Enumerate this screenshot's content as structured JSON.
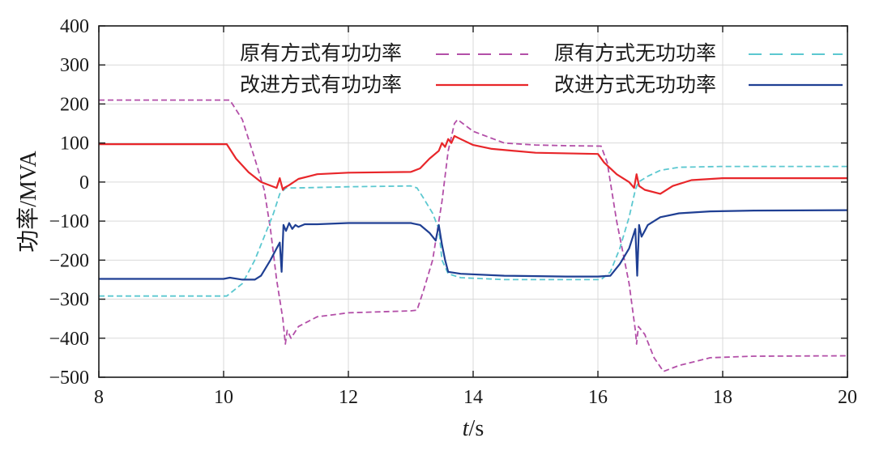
{
  "chart_data": {
    "type": "line",
    "title": "",
    "xlabel_italic": "t",
    "xlabel_unit": "/s",
    "ylabel": "功率/MVA",
    "xlim": [
      8,
      20
    ],
    "ylim": [
      -500,
      400
    ],
    "xticks": [
      8,
      10,
      12,
      14,
      16,
      18,
      20
    ],
    "yticks": [
      400,
      300,
      200,
      100,
      0,
      -100,
      -200,
      -300,
      -400,
      -500
    ],
    "ytick_labels": [
      "400",
      "300",
      "200",
      "100",
      "0",
      "−100",
      "−200",
      "−300",
      "−400",
      "−500"
    ],
    "grid": true,
    "legend_position": "top",
    "series": [
      {
        "name": "原有方式有功功率",
        "color": "#b34fa8",
        "style": "dashed",
        "points": [
          [
            8,
            210
          ],
          [
            10.1,
            210
          ],
          [
            10.3,
            160
          ],
          [
            10.5,
            60
          ],
          [
            10.65,
            -20
          ],
          [
            10.75,
            -120
          ],
          [
            10.85,
            -250
          ],
          [
            10.95,
            -350
          ],
          [
            10.99,
            -415
          ],
          [
            11.02,
            -380
          ],
          [
            11.08,
            -400
          ],
          [
            11.2,
            -370
          ],
          [
            11.5,
            -345
          ],
          [
            12,
            -335
          ],
          [
            13,
            -330
          ],
          [
            13.1,
            -328
          ],
          [
            13.2,
            -280
          ],
          [
            13.35,
            -200
          ],
          [
            13.5,
            -50
          ],
          [
            13.6,
            80
          ],
          [
            13.7,
            150
          ],
          [
            13.75,
            160
          ],
          [
            14,
            130
          ],
          [
            14.5,
            100
          ],
          [
            15,
            95
          ],
          [
            15.5,
            93
          ],
          [
            16.05,
            92
          ],
          [
            16.15,
            50
          ],
          [
            16.3,
            -100
          ],
          [
            16.5,
            -260
          ],
          [
            16.6,
            -380
          ],
          [
            16.62,
            -415
          ],
          [
            16.65,
            -370
          ],
          [
            16.75,
            -390
          ],
          [
            16.9,
            -450
          ],
          [
            17.05,
            -485
          ],
          [
            17.3,
            -470
          ],
          [
            17.8,
            -450
          ],
          [
            18.5,
            -446
          ],
          [
            20,
            -445
          ]
        ]
      },
      {
        "name": "原有方式无功功率",
        "color": "#5cc8d0",
        "style": "dashed",
        "points": [
          [
            8,
            -292
          ],
          [
            10.05,
            -292
          ],
          [
            10.3,
            -260
          ],
          [
            10.5,
            -200
          ],
          [
            10.65,
            -140
          ],
          [
            10.8,
            -80
          ],
          [
            10.9,
            -30
          ],
          [
            11,
            -15
          ],
          [
            11.2,
            -15
          ],
          [
            12,
            -12
          ],
          [
            13,
            -10
          ],
          [
            13.1,
            -15
          ],
          [
            13.2,
            -40
          ],
          [
            13.35,
            -80
          ],
          [
            13.45,
            -120
          ],
          [
            13.5,
            -200
          ],
          [
            13.6,
            -235
          ],
          [
            13.8,
            -245
          ],
          [
            14.5,
            -250
          ],
          [
            15.5,
            -250
          ],
          [
            16.05,
            -250
          ],
          [
            16.2,
            -230
          ],
          [
            16.35,
            -170
          ],
          [
            16.5,
            -90
          ],
          [
            16.6,
            -20
          ],
          [
            16.65,
            0
          ],
          [
            16.8,
            15
          ],
          [
            17,
            30
          ],
          [
            17.3,
            38
          ],
          [
            18,
            40
          ],
          [
            20,
            40
          ]
        ]
      },
      {
        "name": "改进方式有功功率",
        "color": "#e8262a",
        "style": "solid",
        "points": [
          [
            8,
            97
          ],
          [
            10.05,
            97
          ],
          [
            10.2,
            60
          ],
          [
            10.4,
            25
          ],
          [
            10.6,
            0
          ],
          [
            10.85,
            -15
          ],
          [
            10.9,
            10
          ],
          [
            10.95,
            -20
          ],
          [
            10.97,
            -15
          ],
          [
            11.05,
            -8
          ],
          [
            11.2,
            8
          ],
          [
            11.5,
            20
          ],
          [
            12,
            24
          ],
          [
            13,
            26
          ],
          [
            13.15,
            35
          ],
          [
            13.3,
            60
          ],
          [
            13.45,
            80
          ],
          [
            13.5,
            100
          ],
          [
            13.55,
            90
          ],
          [
            13.6,
            110
          ],
          [
            13.65,
            100
          ],
          [
            13.7,
            118
          ],
          [
            13.8,
            110
          ],
          [
            14,
            95
          ],
          [
            14.3,
            85
          ],
          [
            15,
            75
          ],
          [
            16,
            72
          ],
          [
            16.1,
            50
          ],
          [
            16.3,
            20
          ],
          [
            16.5,
            0
          ],
          [
            16.58,
            -15
          ],
          [
            16.62,
            20
          ],
          [
            16.66,
            -10
          ],
          [
            16.75,
            -20
          ],
          [
            17,
            -30
          ],
          [
            17.2,
            -10
          ],
          [
            17.5,
            5
          ],
          [
            18,
            10
          ],
          [
            20,
            10
          ]
        ]
      },
      {
        "name": "改进方式无功功率",
        "color": "#1f3f93",
        "style": "solid",
        "points": [
          [
            8,
            -248
          ],
          [
            10,
            -248
          ],
          [
            10.1,
            -245
          ],
          [
            10.3,
            -250
          ],
          [
            10.5,
            -250
          ],
          [
            10.6,
            -240
          ],
          [
            10.75,
            -200
          ],
          [
            10.85,
            -170
          ],
          [
            10.9,
            -155
          ],
          [
            10.93,
            -230
          ],
          [
            10.96,
            -110
          ],
          [
            11,
            -125
          ],
          [
            11.05,
            -105
          ],
          [
            11.1,
            -120
          ],
          [
            11.15,
            -110
          ],
          [
            11.2,
            -115
          ],
          [
            11.3,
            -108
          ],
          [
            11.5,
            -108
          ],
          [
            12,
            -105
          ],
          [
            13,
            -105
          ],
          [
            13.15,
            -110
          ],
          [
            13.3,
            -130
          ],
          [
            13.4,
            -150
          ],
          [
            13.45,
            -110
          ],
          [
            13.5,
            -160
          ],
          [
            13.55,
            -200
          ],
          [
            13.6,
            -230
          ],
          [
            13.8,
            -235
          ],
          [
            14.5,
            -240
          ],
          [
            15.5,
            -242
          ],
          [
            16,
            -242
          ],
          [
            16.2,
            -240
          ],
          [
            16.35,
            -210
          ],
          [
            16.5,
            -170
          ],
          [
            16.6,
            -120
          ],
          [
            16.63,
            -240
          ],
          [
            16.66,
            -110
          ],
          [
            16.7,
            -140
          ],
          [
            16.75,
            -125
          ],
          [
            16.8,
            -110
          ],
          [
            17,
            -90
          ],
          [
            17.3,
            -80
          ],
          [
            17.8,
            -75
          ],
          [
            18.5,
            -73
          ],
          [
            20,
            -72
          ]
        ]
      }
    ]
  }
}
